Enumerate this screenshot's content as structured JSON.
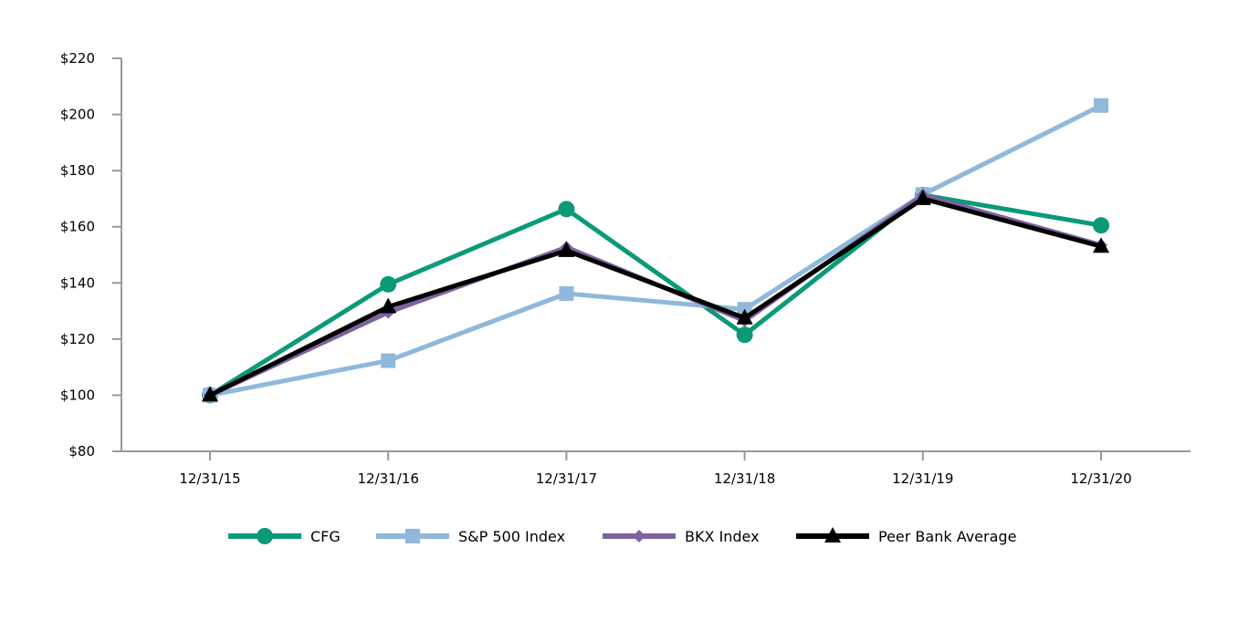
{
  "chart_data": {
    "type": "line",
    "title": "",
    "xlabel": "",
    "ylabel": "",
    "categories": [
      "12/31/15",
      "12/31/16",
      "12/31/17",
      "12/31/18",
      "12/31/19",
      "12/31/20"
    ],
    "y_ticks": [
      "$80",
      "$100",
      "$120",
      "$140",
      "$160",
      "$180",
      "$200",
      "$220"
    ],
    "ylim": [
      80,
      220
    ],
    "grid": false,
    "legend_position": "bottom",
    "series": [
      {
        "name": "CFG",
        "color": "#0a9a78",
        "marker": "circle",
        "values": [
          100,
          139.5,
          166.3,
          121.5,
          171.3,
          160.5
        ]
      },
      {
        "name": "S&P 500 Index",
        "color": "#8fb8da",
        "marker": "square",
        "values": [
          100,
          112.3,
          136.2,
          130.6,
          171.5,
          203.2
        ]
      },
      {
        "name": "BKX Index",
        "color": "#7d629f",
        "marker": "diamond",
        "values": [
          100,
          129.5,
          152.7,
          126.5,
          171.3,
          153.5
        ]
      },
      {
        "name": "Peer Bank Average",
        "color": "#000000",
        "marker": "triangle",
        "values": [
          100,
          131.5,
          151.5,
          127.5,
          170.0,
          153.0
        ]
      }
    ]
  }
}
